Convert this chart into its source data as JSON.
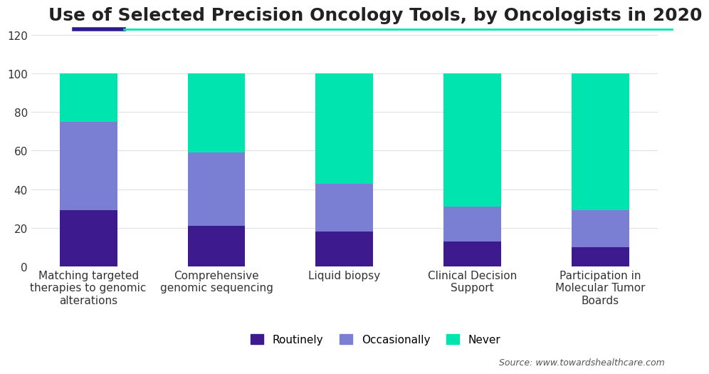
{
  "title": "Use of Selected Precision Oncology Tools, by Oncologists in 2020",
  "categories": [
    "Matching targeted\ntherapies to genomic\nalterations",
    "Comprehensive\ngenomic sequencing",
    "Liquid biopsy",
    "Clinical Decision\nSupport",
    "Participation in\nMolecular Tumor\nBoards"
  ],
  "routinely": [
    29,
    21,
    18,
    13,
    10
  ],
  "occasionally": [
    46,
    38,
    25,
    18,
    19
  ],
  "never": [
    25,
    41,
    57,
    69,
    71
  ],
  "color_routinely": "#3d1a8e",
  "color_occasionally": "#7b7fd4",
  "color_never": "#00e5b0",
  "background_color": "#ffffff",
  "grid_color": "#e0e0e0",
  "ylim": [
    0,
    120
  ],
  "yticks": [
    0,
    20,
    40,
    60,
    80,
    100,
    120
  ],
  "ylabel": "",
  "source_text": "Source: www.towardshealthcare.com",
  "legend_labels": [
    "Routinely",
    "Occasionally",
    "Never"
  ],
  "title_color": "#222222",
  "title_fontsize": 18,
  "tick_fontsize": 11,
  "bar_width": 0.45,
  "header_line_dark": "#2d1a8e",
  "header_line_teal": "#00e5b0"
}
